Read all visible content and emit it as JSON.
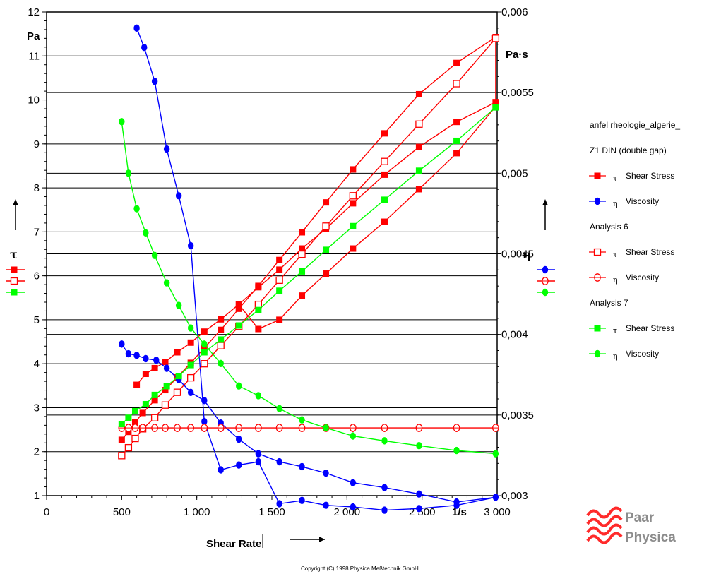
{
  "chart_data": {
    "type": "line",
    "xlabel": "Shear Rate",
    "x_unit": "1/s",
    "ylabel_left": "τ",
    "y_unit_left": "Pa",
    "ylabel_right": "η",
    "y_unit_right": "Pa·s",
    "xlim": [
      0,
      3000
    ],
    "ylim_left": [
      1,
      12
    ],
    "ylim_right": [
      0.003,
      0.006
    ],
    "x_ticks": [
      0,
      500,
      1000,
      1500,
      2000,
      2500,
      3000
    ],
    "x_tick_labels": [
      "0",
      "500",
      "1 000",
      "1 500",
      "2 000",
      "2 500",
      "3 000"
    ],
    "y_left_ticks": [
      1,
      2,
      3,
      4,
      5,
      6,
      7,
      8,
      9,
      10,
      11,
      12
    ],
    "y_left_tick_labels": [
      "1",
      "2",
      "3",
      "4",
      "5",
      "6",
      "7",
      "8",
      "9",
      "10",
      "11",
      "12"
    ],
    "y_right_ticks": [
      0.003,
      0.0035,
      0.004,
      0.0045,
      0.005,
      0.0055,
      0.006
    ],
    "y_right_tick_labels": [
      "0,003",
      "0,0035",
      "0,004",
      "0,0045",
      "0,005",
      "0,0055",
      "0,006"
    ],
    "grid": true,
    "legend": {
      "title": "anfel rheologie_algerie_",
      "groups": [
        {
          "label": "Z1 DIN  (double gap)",
          "entries": [
            {
              "sym": "τ",
              "text": "Shear Stress",
              "color": "#ff0000",
              "marker": "square-filled"
            },
            {
              "sym": "η",
              "text": "Viscosity",
              "color": "#0000ff",
              "marker": "circle-filled"
            }
          ]
        },
        {
          "label": "Analysis 6",
          "entries": [
            {
              "sym": "τ",
              "text": "Shear Stress",
              "color": "#ff0000",
              "marker": "square-open"
            },
            {
              "sym": "η",
              "text": "Viscosity",
              "color": "#ff0000",
              "marker": "circle-open"
            }
          ]
        },
        {
          "label": "Analysis 7",
          "entries": [
            {
              "sym": "τ",
              "text": "Shear Stress",
              "color": "#00ff00",
              "marker": "square-filled"
            },
            {
              "sym": "η",
              "text": "Viscosity",
              "color": "#00ff00",
              "marker": "circle-filled"
            }
          ]
        }
      ]
    },
    "series": [
      {
        "axis": "left",
        "color": "#ff0000",
        "marker": "square-filled",
        "points": [
          [
            500,
            2.27
          ],
          [
            545,
            2.45
          ],
          [
            590,
            2.67
          ],
          [
            640,
            2.88
          ],
          [
            720,
            3.17
          ],
          [
            790,
            3.4
          ],
          [
            870,
            3.69
          ],
          [
            960,
            4.02
          ],
          [
            1050,
            4.36
          ],
          [
            1160,
            4.77
          ],
          [
            1280,
            5.25
          ],
          [
            1410,
            5.77
          ],
          [
            1550,
            6.36
          ],
          [
            1700,
            6.99
          ],
          [
            1860,
            7.67
          ],
          [
            2040,
            8.42
          ],
          [
            2250,
            9.24
          ],
          [
            2480,
            10.13
          ],
          [
            2730,
            10.84
          ],
          [
            2990,
            11.43
          ],
          [
            2990,
            9.95
          ],
          [
            2730,
            9.5
          ],
          [
            2480,
            8.93
          ],
          [
            2250,
            8.3
          ],
          [
            2040,
            7.65
          ],
          [
            1860,
            7.07
          ],
          [
            1700,
            6.62
          ],
          [
            1550,
            6.14
          ],
          [
            1410,
            5.74
          ],
          [
            1280,
            5.35
          ],
          [
            1160,
            5.01
          ],
          [
            1050,
            4.73
          ],
          [
            960,
            4.48
          ],
          [
            870,
            4.26
          ],
          [
            790,
            4.04
          ],
          [
            720,
            3.9
          ],
          [
            660,
            3.77
          ],
          [
            600,
            3.52
          ],
          [
            600,
            3.52
          ],
          [
            660,
            3.77
          ],
          [
            720,
            3.9
          ],
          [
            790,
            4.04
          ],
          [
            870,
            4.26
          ],
          [
            960,
            4.48
          ],
          [
            1050,
            4.73
          ],
          [
            1160,
            5.01
          ],
          [
            1280,
            5.35
          ],
          [
            1410,
            4.79
          ],
          [
            1550,
            5.0
          ],
          [
            1700,
            5.55
          ],
          [
            1860,
            6.05
          ],
          [
            2040,
            6.62
          ],
          [
            2250,
            7.23
          ],
          [
            2480,
            7.97
          ],
          [
            2730,
            8.79
          ],
          [
            2990,
            9.85
          ]
        ]
      },
      {
        "axis": "right",
        "color": "#0000ff",
        "marker": "circle-filled",
        "points": [
          [
            600,
            0.0059
          ],
          [
            650,
            0.00578
          ],
          [
            720,
            0.00557
          ],
          [
            800,
            0.00515
          ],
          [
            880,
            0.00486
          ],
          [
            960,
            0.00455
          ],
          [
            1050,
            0.00346
          ],
          [
            1160,
            0.00316
          ],
          [
            1280,
            0.00319
          ],
          [
            1410,
            0.00321
          ],
          [
            1550,
            0.00295
          ],
          [
            1700,
            0.00297
          ],
          [
            1860,
            0.00294
          ],
          [
            2040,
            0.00293
          ],
          [
            2250,
            0.00291
          ],
          [
            2480,
            0.00292
          ],
          [
            2730,
            0.00294
          ],
          [
            2990,
            0.00299
          ],
          [
            2990,
            0.00299
          ],
          [
            2730,
            0.00296
          ],
          [
            2480,
            0.00301
          ],
          [
            2250,
            0.00305
          ],
          [
            2040,
            0.00308
          ],
          [
            1860,
            0.00314
          ],
          [
            1700,
            0.00318
          ],
          [
            1550,
            0.00321
          ],
          [
            1410,
            0.00326
          ],
          [
            1280,
            0.00335
          ],
          [
            1160,
            0.00345
          ],
          [
            1050,
            0.00359
          ],
          [
            960,
            0.00364
          ],
          [
            880,
            0.00372
          ],
          [
            800,
            0.00379
          ],
          [
            730,
            0.00384
          ],
          [
            660,
            0.00385
          ],
          [
            600,
            0.00387
          ],
          [
            545,
            0.00388
          ],
          [
            500,
            0.00394
          ]
        ]
      },
      {
        "axis": "left",
        "color": "#ff0000",
        "marker": "square-open",
        "points": [
          [
            500,
            1.91
          ],
          [
            545,
            2.09
          ],
          [
            590,
            2.3
          ],
          [
            640,
            2.52
          ],
          [
            720,
            2.77
          ],
          [
            790,
            3.06
          ],
          [
            870,
            3.35
          ],
          [
            960,
            3.68
          ],
          [
            1050,
            4.0
          ],
          [
            1160,
            4.41
          ],
          [
            1280,
            4.85
          ],
          [
            1410,
            5.35
          ],
          [
            1550,
            5.9
          ],
          [
            1700,
            6.49
          ],
          [
            1860,
            7.13
          ],
          [
            2040,
            7.82
          ],
          [
            2250,
            8.6
          ],
          [
            2480,
            9.45
          ],
          [
            2730,
            10.37
          ],
          [
            2990,
            11.4
          ]
        ]
      },
      {
        "axis": "right",
        "color": "#ff0000",
        "marker": "circle-open",
        "points": [
          [
            500,
            0.00342
          ],
          [
            545,
            0.00342
          ],
          [
            590,
            0.00342
          ],
          [
            640,
            0.00342
          ],
          [
            720,
            0.00342
          ],
          [
            790,
            0.00342
          ],
          [
            870,
            0.00342
          ],
          [
            960,
            0.00342
          ],
          [
            1050,
            0.00342
          ],
          [
            1160,
            0.00342
          ],
          [
            1280,
            0.00342
          ],
          [
            1410,
            0.00342
          ],
          [
            1550,
            0.00342
          ],
          [
            1700,
            0.00342
          ],
          [
            1860,
            0.00342
          ],
          [
            2040,
            0.00342
          ],
          [
            2250,
            0.00342
          ],
          [
            2480,
            0.00342
          ],
          [
            2730,
            0.00342
          ],
          [
            2990,
            0.00342
          ]
        ]
      },
      {
        "axis": "left",
        "color": "#00ff00",
        "marker": "square-filled",
        "points": [
          [
            500,
            2.63
          ],
          [
            545,
            2.77
          ],
          [
            590,
            2.92
          ],
          [
            660,
            3.08
          ],
          [
            720,
            3.29
          ],
          [
            800,
            3.49
          ],
          [
            880,
            3.72
          ],
          [
            960,
            3.97
          ],
          [
            1050,
            4.26
          ],
          [
            1160,
            4.55
          ],
          [
            1280,
            4.87
          ],
          [
            1410,
            5.22
          ],
          [
            1550,
            5.66
          ],
          [
            1700,
            6.1
          ],
          [
            1860,
            6.59
          ],
          [
            2040,
            7.13
          ],
          [
            2250,
            7.73
          ],
          [
            2480,
            8.39
          ],
          [
            2730,
            9.07
          ],
          [
            2990,
            9.83
          ]
        ]
      },
      {
        "axis": "right",
        "color": "#00ff00",
        "marker": "circle-filled",
        "points": [
          [
            500,
            0.00532
          ],
          [
            545,
            0.005
          ],
          [
            600,
            0.00478
          ],
          [
            660,
            0.00463
          ],
          [
            720,
            0.00449
          ],
          [
            800,
            0.00432
          ],
          [
            880,
            0.00418
          ],
          [
            960,
            0.00404
          ],
          [
            1050,
            0.00394
          ],
          [
            1160,
            0.00382
          ],
          [
            1280,
            0.00368
          ],
          [
            1410,
            0.00362
          ],
          [
            1550,
            0.00354
          ],
          [
            1700,
            0.00347
          ],
          [
            1860,
            0.00342
          ],
          [
            2040,
            0.00337
          ],
          [
            2250,
            0.00334
          ],
          [
            2480,
            0.00331
          ],
          [
            2730,
            0.00328
          ],
          [
            2990,
            0.00326
          ]
        ]
      }
    ]
  },
  "copyright": "Copyright (C) 1998 Physica Meßtechnik GmbH",
  "logo": {
    "line1": "Paar",
    "line2": "Physica"
  }
}
